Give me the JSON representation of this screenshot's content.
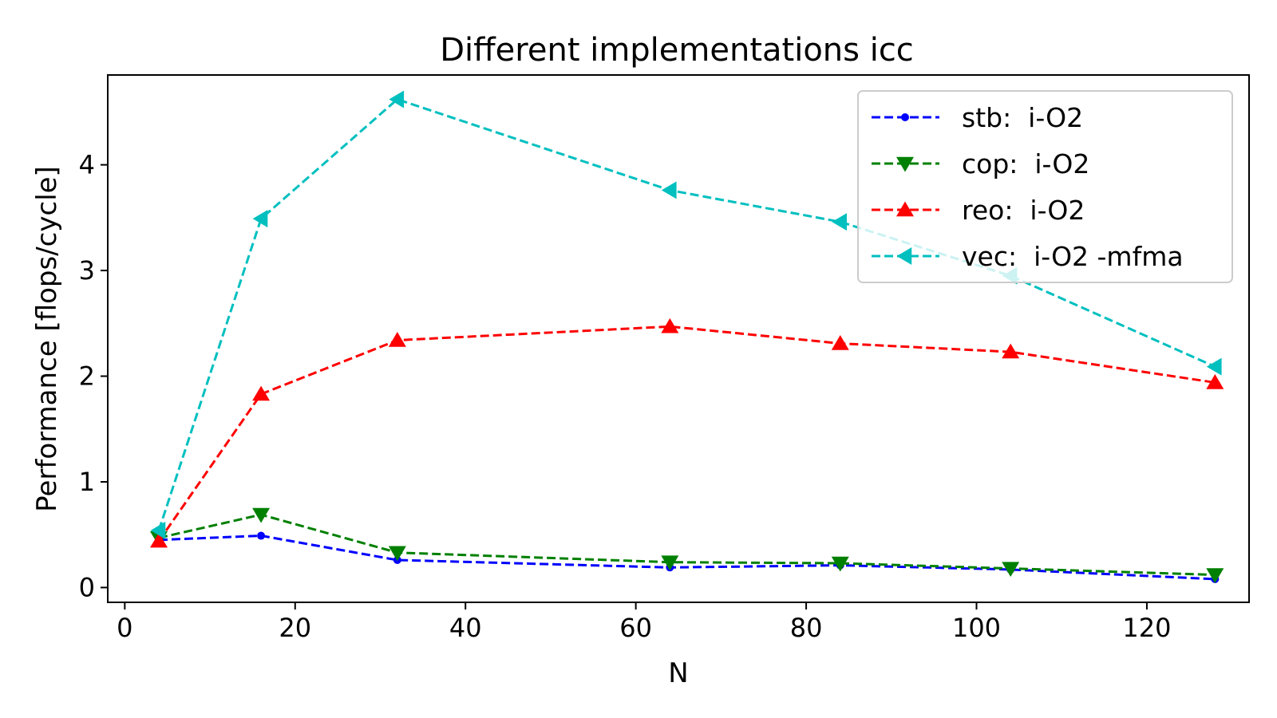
{
  "chart_data": {
    "type": "line",
    "title": "Different implementations icc",
    "xlabel": "N",
    "ylabel": "Performance [flops/cycle]",
    "xlim": [
      -2,
      132
    ],
    "ylim": [
      -0.14,
      4.85
    ],
    "xticks": [
      0,
      20,
      40,
      60,
      80,
      100,
      120
    ],
    "yticks": [
      0,
      1,
      2,
      3,
      4
    ],
    "grid": false,
    "legend_position": "top-right",
    "x": [
      4,
      16,
      32,
      64,
      84,
      104,
      128
    ],
    "series": [
      {
        "name": "stb:  i-O2",
        "color": "#0000ff",
        "marker": "circle",
        "values": [
          0.45,
          0.49,
          0.26,
          0.19,
          0.21,
          0.17,
          0.08
        ]
      },
      {
        "name": "cop:  i-O2",
        "color": "#008000",
        "marker": "triangle-down",
        "values": [
          0.47,
          0.69,
          0.33,
          0.24,
          0.23,
          0.18,
          0.12
        ]
      },
      {
        "name": "reo:  i-O2",
        "color": "#ff0000",
        "marker": "triangle-up",
        "values": [
          0.44,
          1.83,
          2.34,
          2.47,
          2.31,
          2.23,
          1.94
        ]
      },
      {
        "name": "vec:  i-O2 -mfma",
        "color": "#00bfbf",
        "marker": "triangle-left",
        "values": [
          0.54,
          3.49,
          4.62,
          3.76,
          3.46,
          2.95,
          2.09
        ]
      }
    ]
  }
}
